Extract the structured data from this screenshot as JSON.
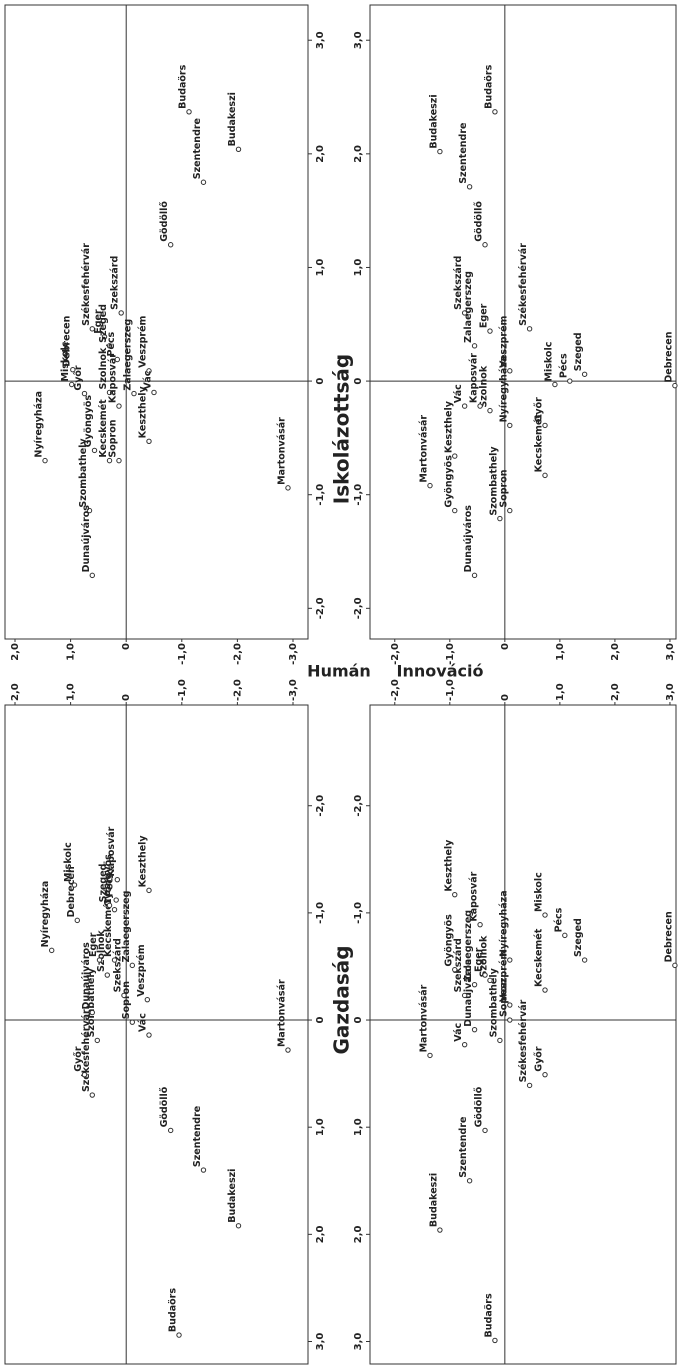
{
  "chart_data": [
    {
      "type": "scatter",
      "x_label": "Gazdaság",
      "y_label": "Humán",
      "xlim": [
        3.21,
        -2.94
      ],
      "ylim": [
        -3.27,
        2.18
      ],
      "xticks": [
        {
          "value": -2,
          "label": "-2,0"
        },
        {
          "value": -1,
          "label": "-1,0"
        },
        0,
        {
          "value": 1,
          "label": "1,0"
        },
        {
          "value": 2,
          "label": "2,0"
        },
        {
          "value": 3,
          "label": "3,0"
        }
      ],
      "yticks": [
        {
          "value": 2,
          "label": "2,0"
        },
        {
          "value": 1,
          "label": "1,0"
        },
        0,
        {
          "value": -1,
          "label": "-1,0"
        },
        {
          "value": -2,
          "label": "-2,0"
        },
        {
          "value": -3,
          "label": "-3,0"
        }
      ],
      "marker_color": "#333333",
      "labels": [
        "Budaörs",
        "Budakeszi",
        "Szentendre",
        "Gödöllő",
        "Martonvásár",
        "Székesfehérvár",
        "Győr",
        "Szombathely",
        "Vác",
        "Sopron",
        "Dunaújváros",
        "Szekszárd",
        "Veszprém",
        "Szolnok",
        "Zalaegerszeg",
        "Kecskemét",
        "Eger",
        "Nyíregyháza",
        "Debrecen",
        "Gyöngyös",
        "Szeged",
        "Pécs",
        "Kaposvár",
        "Miskolc",
        "Keszthely"
      ],
      "x": [
        2.94,
        1.92,
        1.4,
        1.03,
        0.28,
        0.7,
        0.51,
        0.19,
        0.14,
        0.02,
        -0.07,
        -0.23,
        -0.19,
        -0.42,
        -0.51,
        -0.56,
        -0.56,
        -0.65,
        -0.93,
        -1.03,
        -1.07,
        -1.12,
        -1.31,
        -1.26,
        -1.21
      ],
      "y": [
        -0.95,
        -2.02,
        -1.39,
        -0.8,
        -2.91,
        0.61,
        0.75,
        0.52,
        -0.41,
        -0.11,
        0.61,
        0.04,
        -0.38,
        0.34,
        -0.11,
        0.21,
        0.48,
        1.34,
        0.88,
        0.21,
        0.3,
        0.18,
        0.16,
        0.93,
        -0.41
      ]
    },
    {
      "type": "scatter",
      "x_label": "Iskolázottság",
      "xlim": [
        -2.27,
        3.31
      ],
      "ylim": [
        -3.27,
        2.18
      ],
      "xticks": [
        {
          "value": -2,
          "label": "-2,0"
        },
        {
          "value": -1,
          "label": "-1,0"
        },
        0,
        {
          "value": 1,
          "label": "1,0"
        },
        {
          "value": 2,
          "label": "2,0"
        },
        {
          "value": 3,
          "label": "3,0"
        }
      ],
      "yticks": [
        {
          "value": 2,
          "label": "2,0"
        },
        {
          "value": 1,
          "label": "1,0"
        },
        0,
        {
          "value": -1,
          "label": "-1,0"
        },
        {
          "value": -2,
          "label": "-2,0"
        },
        {
          "value": -3,
          "label": "-3,0"
        }
      ],
      "marker_color": "#333333",
      "labels": [
        "Budaörs",
        "Budakeszi",
        "Szentendre",
        "Gödöllő",
        "Székesfehérvár",
        "Eger",
        "Szekszárd",
        "Szeged",
        "Debrecen",
        "Pécs",
        "Veszprém",
        "Miskolc",
        "Győr",
        "Szolnok",
        "Vác",
        "Zalaegerszeg",
        "Kaposvár",
        "Keszthely",
        "Nyíregyháza",
        "Gyöngyös",
        "Kecskemét",
        "Sopron",
        "Szombathely",
        "Dunaújváros",
        "Martonvásár"
      ],
      "x": [
        2.37,
        2.04,
        1.75,
        1.2,
        0.46,
        0.39,
        0.6,
        0.31,
        0.1,
        0.19,
        0.09,
        -0.03,
        -0.11,
        -0.1,
        -0.1,
        -0.11,
        -0.22,
        -0.53,
        -0.7,
        -0.61,
        -0.7,
        -0.7,
        -1.14,
        -1.71,
        -0.94
      ],
      "y": [
        -1.13,
        -2.02,
        -1.39,
        -0.8,
        0.61,
        0.39,
        0.09,
        0.3,
        0.96,
        0.16,
        -0.41,
        0.98,
        0.75,
        0.3,
        -0.5,
        -0.14,
        0.13,
        -0.41,
        1.46,
        0.57,
        0.3,
        0.13,
        0.66,
        0.61,
        -2.91
      ]
    },
    {
      "type": "scatter",
      "y_label": "Innováció",
      "xlim": [
        3.21,
        -2.94
      ],
      "ylim": [
        3.11,
        -2.45
      ],
      "xticks": [
        {
          "value": -2,
          "label": "-2,0"
        },
        {
          "value": -1,
          "label": "-1,0"
        },
        0,
        {
          "value": 1,
          "label": "1,0"
        },
        {
          "value": 2,
          "label": "2,0"
        },
        {
          "value": 3,
          "label": "3,0"
        }
      ],
      "yticks": [
        {
          "value": -2,
          "label": "-2,0"
        },
        {
          "value": -1,
          "label": "-1,0"
        },
        0,
        {
          "value": 1,
          "label": "1,0"
        },
        {
          "value": 2,
          "label": "2,0"
        },
        {
          "value": 3,
          "label": "3,0"
        }
      ],
      "marker_color": "#333333",
      "labels": [
        "Budaörs",
        "Budakeszi",
        "Szentendre",
        "Gödöllő",
        "Martonvásár",
        "Vác",
        "Dunaújváros",
        "Szombathely",
        "Székesfehérvár",
        "Győr",
        "Sopron",
        "Szekszárd",
        "Zalaegerszeg",
        "Szolnok",
        "Eger",
        "Veszprém",
        "Kecskemét",
        "Gyöngyös",
        "Nyíregyháza",
        "Szeged",
        "Kaposvár",
        "Keszthely",
        "Miskolc",
        "Pécs",
        "Debrecen"
      ],
      "x": [
        2.99,
        1.96,
        1.5,
        1.03,
        0.33,
        0.23,
        0.09,
        0.19,
        0.61,
        0.51,
        0,
        -0.23,
        -0.33,
        -0.37,
        -0.42,
        -0.14,
        -0.28,
        -0.47,
        -0.56,
        -0.56,
        -0.89,
        -1.17,
        -0.98,
        -0.79,
        -0.51
      ],
      "y": [
        -0.18,
        -1.18,
        -0.64,
        -0.36,
        -1.36,
        -0.73,
        -0.55,
        -0.09,
        0.45,
        0.73,
        0.09,
        -0.73,
        -0.55,
        -0.27,
        -0.36,
        0.09,
        0.73,
        -0.91,
        0.09,
        1.45,
        -0.45,
        -0.91,
        0.73,
        1.09,
        3.09
      ]
    },
    {
      "type": "scatter",
      "xlim": [
        -2.27,
        3.31
      ],
      "ylim": [
        3.11,
        -2.45
      ],
      "xticks": [
        {
          "value": -2,
          "label": "-2,0"
        },
        {
          "value": -1,
          "label": "-1,0"
        },
        0,
        {
          "value": 1,
          "label": "1,0"
        },
        {
          "value": 2,
          "label": "2,0"
        },
        {
          "value": 3,
          "label": "3,0"
        }
      ],
      "yticks": [
        {
          "value": -2,
          "label": "-2,0"
        },
        {
          "value": -1,
          "label": "-1,0"
        },
        0,
        {
          "value": 1,
          "label": "1,0"
        },
        {
          "value": 2,
          "label": "2,0"
        },
        {
          "value": 3,
          "label": "3,0"
        }
      ],
      "marker_color": "#333333",
      "labels": [
        "Budaörs",
        "Budakeszi",
        "Szentendre",
        "Gödöllő",
        "Székesfehérvár",
        "Szekszárd",
        "Eger",
        "Zalaegerszeg",
        "Veszprém",
        "Miskolc",
        "Pécs",
        "Szeged",
        "Vác",
        "Szolnok",
        "Kaposvár",
        "Nyíregyháza",
        "Győr",
        "Keszthely",
        "Martonvásár",
        "Gyöngyös",
        "Kecskemét",
        "Sopron",
        "Szombathely",
        "Dunaújváros",
        "Debrecen"
      ],
      "x": [
        2.37,
        2.02,
        1.71,
        1.2,
        0.46,
        0.6,
        0.44,
        0.31,
        0.09,
        -0.03,
        0,
        0.06,
        -0.22,
        -0.26,
        -0.22,
        -0.39,
        -0.39,
        -0.66,
        -0.92,
        -1.14,
        -0.83,
        -1.14,
        -1.21,
        -1.71,
        -0.04
      ],
      "y": [
        -0.18,
        -1.18,
        -0.64,
        -0.36,
        0.45,
        -0.73,
        -0.27,
        -0.55,
        0.09,
        0.91,
        1.18,
        1.45,
        -0.73,
        -0.27,
        -0.45,
        0.09,
        0.73,
        -0.91,
        -1.36,
        -0.91,
        0.73,
        0.09,
        -0.09,
        -0.55,
        3.09
      ]
    }
  ]
}
